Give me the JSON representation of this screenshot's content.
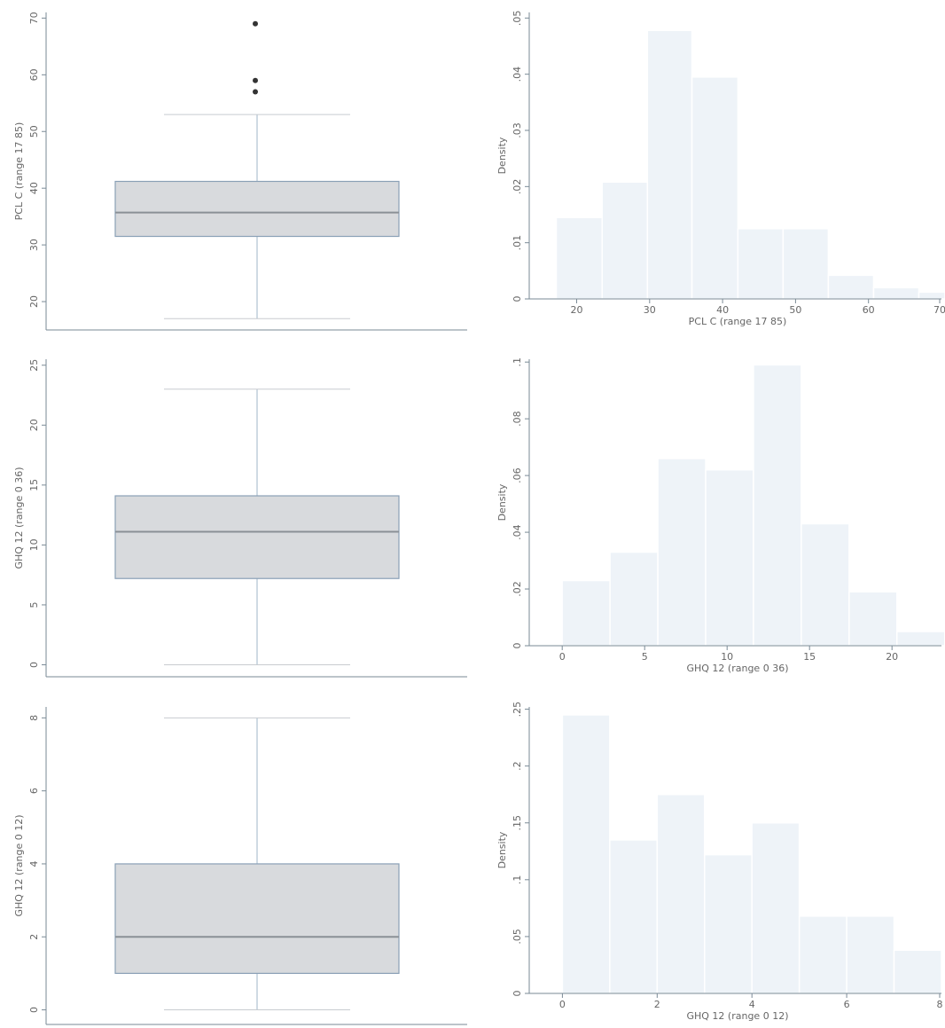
{
  "chart_data": [
    {
      "type": "box",
      "ylabel": "PCL C (range 17 85)",
      "ylim": [
        15,
        71
      ],
      "yticks": [
        20,
        30,
        40,
        50,
        60,
        70
      ],
      "yticklabels": [
        "20",
        "30",
        "40",
        "50",
        "60",
        "70"
      ],
      "min": 17,
      "q1": 31.5,
      "median": 35.7,
      "q3": 41.2,
      "max": 53,
      "outliers": [
        69,
        59,
        57
      ]
    },
    {
      "type": "bar",
      "histogram": true,
      "xlabel": "PCL C (range 17 85)",
      "ylabel": "Density",
      "xlim": [
        13.5,
        70
      ],
      "ylim": [
        0,
        0.051
      ],
      "xticks": [
        20,
        30,
        40,
        50,
        60,
        70
      ],
      "xticklabels": [
        "20",
        "30",
        "40",
        "50",
        "60",
        "70"
      ],
      "yticks": [
        0,
        0.01,
        0.02,
        0.03,
        0.04,
        0.05
      ],
      "yticklabels": [
        "0",
        ".01",
        ".02",
        ".03",
        ".04",
        ".05"
      ],
      "bins": [
        [
          17.2,
          23.5
        ],
        [
          23.5,
          29.7
        ],
        [
          29.7,
          35.8
        ],
        [
          35.8,
          42.1
        ],
        [
          42.1,
          48.3
        ],
        [
          48.3,
          54.5
        ],
        [
          54.5,
          60.7
        ],
        [
          60.7,
          66.9
        ],
        [
          66.9,
          73
        ]
      ],
      "values": [
        0.0145,
        0.0208,
        0.0478,
        0.0395,
        0.0125,
        0.0125,
        0.0042,
        0.002,
        0.0012
      ]
    },
    {
      "type": "box",
      "ylabel": "GHQ 12 (range 0 36)",
      "ylim": [
        -1,
        25.5
      ],
      "yticks": [
        0,
        5,
        10,
        15,
        20,
        25
      ],
      "yticklabels": [
        "0",
        "5",
        "10",
        "15",
        "20",
        "25"
      ],
      "min": 0,
      "q1": 7.2,
      "median": 11.1,
      "q3": 14.1,
      "max": 23,
      "outliers": []
    },
    {
      "type": "bar",
      "histogram": true,
      "xlabel": "GHQ 12 (range 0 36)",
      "ylabel": "Density",
      "xlim": [
        -2,
        23
      ],
      "ylim": [
        0,
        0.101
      ],
      "xticks": [
        0,
        5,
        10,
        15,
        20
      ],
      "xticklabels": [
        "0",
        "5",
        "10",
        "15",
        "20"
      ],
      "yticks": [
        0,
        0.02,
        0.04,
        0.06,
        0.08,
        0.1
      ],
      "yticklabels": [
        "0",
        ".02",
        ".04",
        ".06",
        ".08",
        ".1"
      ],
      "bins": [
        [
          0,
          2.9
        ],
        [
          2.9,
          5.8
        ],
        [
          5.8,
          8.7
        ],
        [
          8.7,
          11.6
        ],
        [
          11.6,
          14.5
        ],
        [
          14.5,
          17.4
        ],
        [
          17.4,
          20.3
        ],
        [
          20.3,
          23.2
        ]
      ],
      "values": [
        0.023,
        0.033,
        0.066,
        0.062,
        0.099,
        0.043,
        0.019,
        0.005
      ]
    },
    {
      "type": "box",
      "ylabel": "GHQ 12 (range 0 12)",
      "ylim": [
        -0.4,
        8.3
      ],
      "yticks": [
        0,
        2,
        4,
        6,
        8
      ],
      "yticklabels": [
        "0",
        "2",
        "4",
        "6",
        "8"
      ],
      "min": 0,
      "q1": 1,
      "median": 2,
      "q3": 4,
      "max": 8,
      "outliers": []
    },
    {
      "type": "bar",
      "histogram": true,
      "xlabel": "GHQ 12 (range 0 12)",
      "ylabel": "Density",
      "xlim": [
        -0.7,
        8
      ],
      "ylim": [
        0,
        0.252
      ],
      "xticks": [
        0,
        2,
        4,
        6,
        8
      ],
      "xticklabels": [
        "0",
        "2",
        "4",
        "6",
        "8"
      ],
      "yticks": [
        0,
        0.05,
        0.1,
        0.15,
        0.2,
        0.25
      ],
      "yticklabels": [
        "0",
        ".05",
        ".1",
        ".15",
        ".2",
        ".25"
      ],
      "bins": [
        [
          0,
          1
        ],
        [
          1,
          2
        ],
        [
          2,
          3
        ],
        [
          3,
          4
        ],
        [
          4,
          5
        ],
        [
          5,
          6
        ],
        [
          6,
          7
        ],
        [
          7,
          8
        ]
      ],
      "values": [
        0.245,
        0.135,
        0.175,
        0.122,
        0.15,
        0.068,
        0.068,
        0.038
      ]
    }
  ]
}
